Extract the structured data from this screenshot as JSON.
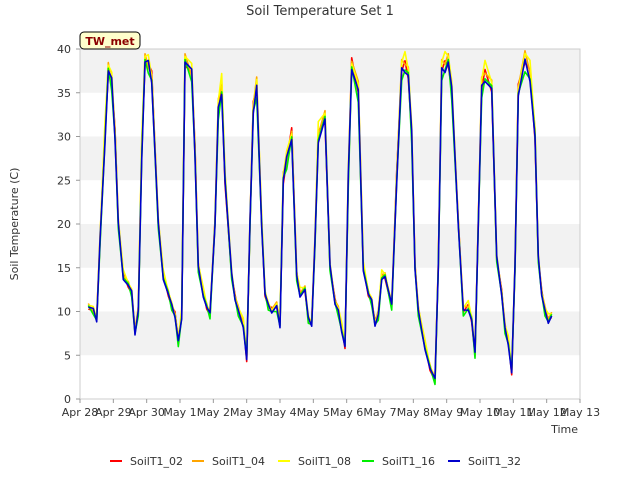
{
  "chart_data": {
    "type": "line",
    "title": "Soil Temperature Set 1",
    "xlabel": "Time",
    "ylabel": "Soil Temperature (C)",
    "station_tag": "TW_met",
    "ylim": [
      0,
      40
    ],
    "yticks": [
      0,
      5,
      10,
      15,
      20,
      25,
      30,
      35,
      40
    ],
    "xlim": [
      0,
      15
    ],
    "xtick_labels": [
      "Apr 28",
      "Apr 29",
      "Apr 30",
      "May 1",
      "May 2",
      "May 3",
      "May 4",
      "May 5",
      "May 6",
      "May 7",
      "May 8",
      "May 9",
      "May 10",
      "May 11",
      "May 12",
      "May 13"
    ],
    "grid": "horizontal bands",
    "legend_position": "bottom",
    "base_series": {
      "x": [
        0.25,
        0.4,
        0.5,
        0.6,
        0.75,
        0.85,
        0.95,
        1.05,
        1.15,
        1.3,
        1.45,
        1.55,
        1.65,
        1.75,
        1.85,
        1.95,
        2.05,
        2.15,
        2.35,
        2.5,
        2.65,
        2.75,
        2.85,
        2.95,
        3.05,
        3.15,
        3.35,
        3.45,
        3.55,
        3.7,
        3.8,
        3.9,
        4.05,
        4.15,
        4.25,
        4.35,
        4.55,
        4.65,
        4.75,
        4.9,
        5.0,
        5.1,
        5.2,
        5.3,
        5.45,
        5.55,
        5.65,
        5.75,
        5.9,
        6.0,
        6.1,
        6.2,
        6.35,
        6.5,
        6.6,
        6.75,
        6.85,
        6.95,
        7.05,
        7.15,
        7.35,
        7.5,
        7.65,
        7.75,
        7.85,
        7.95,
        8.05,
        8.15,
        8.35,
        8.5,
        8.65,
        8.75,
        8.85,
        8.95,
        9.05,
        9.15,
        9.35,
        9.5,
        9.65,
        9.75,
        9.85,
        9.95,
        10.05,
        10.15,
        10.35,
        10.5,
        10.65,
        10.75,
        10.85,
        10.95,
        11.05,
        11.15,
        11.35,
        11.5,
        11.65,
        11.75,
        11.85,
        11.95,
        12.05,
        12.15,
        12.35,
        12.5,
        12.65,
        12.75,
        12.85,
        12.95,
        13.05,
        13.15,
        13.35,
        13.5,
        13.65,
        13.75,
        13.85,
        13.95,
        14.05,
        14.15
      ],
      "y": [
        10.5,
        10.0,
        9.0,
        18.0,
        30.0,
        37.5,
        36.0,
        30.0,
        20.0,
        14.0,
        13.0,
        12.0,
        7.5,
        10.0,
        28.0,
        38.5,
        38.0,
        36.5,
        20.0,
        14.0,
        12.0,
        10.5,
        9.5,
        6.5,
        9.5,
        38.5,
        37.0,
        28.0,
        15.0,
        12.0,
        10.5,
        9.5,
        20.0,
        33.0,
        35.5,
        25.0,
        14.0,
        11.5,
        10.0,
        8.5,
        4.5,
        20.0,
        33.0,
        35.5,
        20.0,
        12.0,
        10.5,
        10.0,
        10.5,
        8.5,
        25.0,
        27.0,
        30.0,
        14.0,
        12.0,
        12.5,
        9.0,
        8.5,
        18.0,
        30.0,
        32.0,
        15.0,
        11.0,
        10.0,
        8.0,
        6.0,
        25.0,
        38.0,
        35.0,
        15.0,
        12.0,
        11.0,
        8.5,
        9.5,
        14.0,
        14.0,
        10.5,
        25.0,
        37.5,
        38.0,
        37.0,
        30.0,
        15.0,
        10.0,
        6.0,
        3.5,
        2.0,
        15.0,
        37.5,
        38.0,
        38.5,
        35.0,
        20.0,
        10.0,
        10.5,
        9.0,
        5.0,
        20.0,
        35.5,
        37.0,
        35.5,
        16.0,
        12.0,
        8.0,
        6.5,
        3.0,
        15.0,
        35.0,
        38.5,
        37.0,
        30.0,
        16.0,
        12.0,
        10.0,
        9.0,
        9.5
      ]
    },
    "series": [
      {
        "name": "SoilT1_02",
        "color": "#ff0000",
        "offset": 0.3
      },
      {
        "name": "SoilT1_04",
        "color": "#ffa500",
        "offset": 0.6
      },
      {
        "name": "SoilT1_08",
        "color": "#ffff00",
        "offset": 1.0
      },
      {
        "name": "SoilT1_16",
        "color": "#00ee00",
        "offset": -0.4
      },
      {
        "name": "SoilT1_32",
        "color": "#0000cc",
        "offset": 0.0
      }
    ]
  }
}
